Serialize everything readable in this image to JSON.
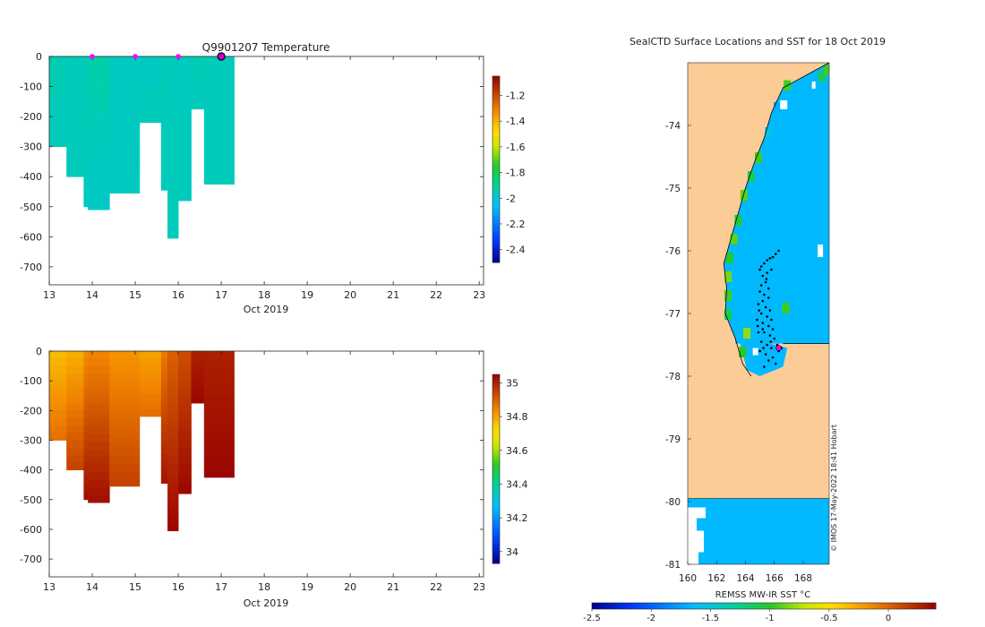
{
  "chart_data": [
    {
      "type": "heatmap",
      "title": "Q9901207  Temperature",
      "xlabel": "Oct 2019",
      "ylabel": "",
      "x_range": [
        13,
        23.1
      ],
      "y_range": [
        -760,
        0
      ],
      "x_ticks": [
        13,
        14,
        15,
        16,
        17,
        18,
        19,
        20,
        21,
        22,
        23
      ],
      "y_ticks": [
        0,
        -100,
        -200,
        -300,
        -400,
        -500,
        -600,
        -700
      ],
      "markers": [
        14,
        15,
        16
      ],
      "current_marker": 17,
      "colorbar": {
        "min": -2.5,
        "max": -1.05,
        "ticks": [
          -2.4,
          -2.2,
          -2,
          -1.8,
          -1.6,
          -1.4,
          -1.2
        ]
      },
      "profiles": [
        {
          "x0": 13.0,
          "x1": 13.4,
          "max_depth": 300,
          "base": -1.95,
          "bottom": -1.95
        },
        {
          "x0": 13.4,
          "x1": 13.8,
          "max_depth": 400,
          "base": -1.95,
          "bottom": -1.95
        },
        {
          "x0": 13.8,
          "x1": 13.9,
          "max_depth": 500,
          "base": -1.93,
          "bottom": -1.96
        },
        {
          "x0": 13.9,
          "x1": 14.4,
          "max_depth": 510,
          "base": -1.93,
          "bottom": -1.97
        },
        {
          "x0": 14.4,
          "x1": 15.1,
          "max_depth": 455,
          "base": -1.96,
          "bottom": -1.96
        },
        {
          "x0": 15.1,
          "x1": 15.6,
          "max_depth": 220,
          "base": -1.95,
          "bottom": -1.95
        },
        {
          "x0": 15.6,
          "x1": 15.75,
          "max_depth": 445,
          "base": -1.95,
          "bottom": -1.95
        },
        {
          "x0": 15.75,
          "x1": 16.0,
          "max_depth": 605,
          "base": -1.95,
          "bottom": -1.95
        },
        {
          "x0": 16.0,
          "x1": 16.3,
          "max_depth": 480,
          "base": -1.95,
          "bottom": -1.95
        },
        {
          "x0": 16.3,
          "x1": 16.6,
          "max_depth": 175,
          "base": -1.95,
          "bottom": -1.95
        },
        {
          "x0": 16.6,
          "x1": 17.3,
          "max_depth": 425,
          "base": -1.95,
          "bottom": -1.95
        }
      ]
    },
    {
      "type": "heatmap",
      "title": "",
      "xlabel": "Oct 2019",
      "ylabel": "",
      "x_range": [
        13,
        23.1
      ],
      "y_range": [
        -760,
        0
      ],
      "x_ticks": [
        13,
        14,
        15,
        16,
        17,
        18,
        19,
        20,
        21,
        22,
        23
      ],
      "y_ticks": [
        0,
        -100,
        -200,
        -300,
        -400,
        -500,
        -600,
        -700
      ],
      "colorbar": {
        "min": 33.93,
        "max": 35.05,
        "ticks": [
          34,
          34.2,
          34.4,
          34.6,
          34.8,
          35
        ]
      },
      "profiles": [
        {
          "x0": 13.0,
          "x1": 13.4,
          "max_depth": 300,
          "base": 34.76,
          "bottom": 34.88
        },
        {
          "x0": 13.4,
          "x1": 13.8,
          "max_depth": 400,
          "base": 34.78,
          "bottom": 34.95
        },
        {
          "x0": 13.8,
          "x1": 13.9,
          "max_depth": 500,
          "base": 34.83,
          "bottom": 35.03
        },
        {
          "x0": 13.9,
          "x1": 14.4,
          "max_depth": 510,
          "base": 34.84,
          "bottom": 35.03
        },
        {
          "x0": 14.4,
          "x1": 15.1,
          "max_depth": 455,
          "base": 34.82,
          "bottom": 34.95
        },
        {
          "x0": 15.1,
          "x1": 15.6,
          "max_depth": 220,
          "base": 34.8,
          "bottom": 34.88
        },
        {
          "x0": 15.6,
          "x1": 15.75,
          "max_depth": 445,
          "base": 34.86,
          "bottom": 35.02
        },
        {
          "x0": 15.75,
          "x1": 16.0,
          "max_depth": 605,
          "base": 34.9,
          "bottom": 35.04
        },
        {
          "x0": 16.0,
          "x1": 16.3,
          "max_depth": 480,
          "base": 34.93,
          "bottom": 35.04
        },
        {
          "x0": 16.3,
          "x1": 16.6,
          "max_depth": 175,
          "base": 35.0,
          "bottom": 35.04
        },
        {
          "x0": 16.6,
          "x1": 17.3,
          "max_depth": 425,
          "base": 35.0,
          "bottom": 35.04
        }
      ]
    },
    {
      "type": "heatmap",
      "title": "SealCTD Surface Locations and SST for 18 Oct 2019",
      "xlabel": "REMSS MW-IR SST °C",
      "ylabel": "",
      "x_range": [
        160,
        169.8
      ],
      "y_range": [
        -81,
        -73
      ],
      "x_ticks": [
        160,
        162,
        164,
        166,
        168
      ],
      "y_ticks": [
        -74,
        -75,
        -76,
        -77,
        -78,
        -79,
        -80,
        -81
      ],
      "land_color": "#fccc96",
      "ocean_sst_value": -1.65,
      "colorbar": {
        "min": -2.5,
        "max": 0.4,
        "ticks": [
          -2.5,
          -2,
          -1.5,
          -1,
          -0.5,
          0
        ]
      },
      "coast_lon": [
        [
          -73.0,
          169.8
        ],
        [
          -73.4,
          166.6
        ],
        [
          -73.8,
          165.8
        ],
        [
          -74.2,
          165.3
        ],
        [
          -74.6,
          164.6
        ],
        [
          -75.0,
          164.0
        ],
        [
          -75.4,
          163.5
        ],
        [
          -75.8,
          163.0
        ],
        [
          -76.2,
          162.5
        ],
        [
          -76.6,
          162.7
        ],
        [
          -77.0,
          162.6
        ],
        [
          -77.4,
          163.3
        ],
        [
          -77.8,
          163.8
        ],
        [
          -78.0,
          164.4
        ],
        [
          -80.0,
          169.8
        ]
      ],
      "ice_shelf_lat": -77.48,
      "south_boundary_lat": -79.95,
      "positions": [
        [
          166.3,
          -76.0
        ],
        [
          166.1,
          -76.05
        ],
        [
          165.9,
          -76.1
        ],
        [
          165.7,
          -76.12
        ],
        [
          165.5,
          -76.15
        ],
        [
          165.3,
          -76.2
        ],
        [
          165.1,
          -76.25
        ],
        [
          165.0,
          -76.3
        ],
        [
          165.5,
          -76.35
        ],
        [
          165.8,
          -76.3
        ],
        [
          165.2,
          -76.4
        ],
        [
          165.4,
          -76.5
        ],
        [
          165.1,
          -76.55
        ],
        [
          165.6,
          -76.6
        ],
        [
          165.0,
          -76.65
        ],
        [
          165.3,
          -76.7
        ],
        [
          165.6,
          -76.75
        ],
        [
          165.2,
          -76.8
        ],
        [
          164.9,
          -76.85
        ],
        [
          165.4,
          -76.9
        ],
        [
          165.7,
          -76.95
        ],
        [
          165.1,
          -77.0
        ],
        [
          165.5,
          -77.05
        ],
        [
          164.8,
          -77.1
        ],
        [
          165.2,
          -77.15
        ],
        [
          165.6,
          -77.2
        ],
        [
          165.9,
          -77.25
        ],
        [
          164.9,
          -77.3
        ],
        [
          165.3,
          -77.3
        ],
        [
          165.7,
          -77.35
        ],
        [
          166.0,
          -77.4
        ],
        [
          165.1,
          -77.45
        ],
        [
          165.5,
          -77.5
        ],
        [
          165.8,
          -77.55
        ],
        [
          166.2,
          -77.5
        ],
        [
          165.0,
          -77.6
        ],
        [
          165.4,
          -77.65
        ],
        [
          165.9,
          -77.7
        ],
        [
          166.3,
          -77.6
        ],
        [
          165.6,
          -77.75
        ],
        [
          166.1,
          -77.8
        ],
        [
          165.2,
          -77.25
        ],
        [
          165.8,
          -77.1
        ],
        [
          164.95,
          -76.95
        ],
        [
          165.45,
          -76.45
        ],
        [
          165.25,
          -77.55
        ],
        [
          166.5,
          -77.55
        ],
        [
          165.3,
          -77.85
        ],
        [
          165.75,
          -77.45
        ],
        [
          164.85,
          -77.2
        ]
      ],
      "current_position": [
        166.3,
        -77.55
      ],
      "credit": "© IMOS 17-May-2022 18:41 Hobart"
    }
  ]
}
